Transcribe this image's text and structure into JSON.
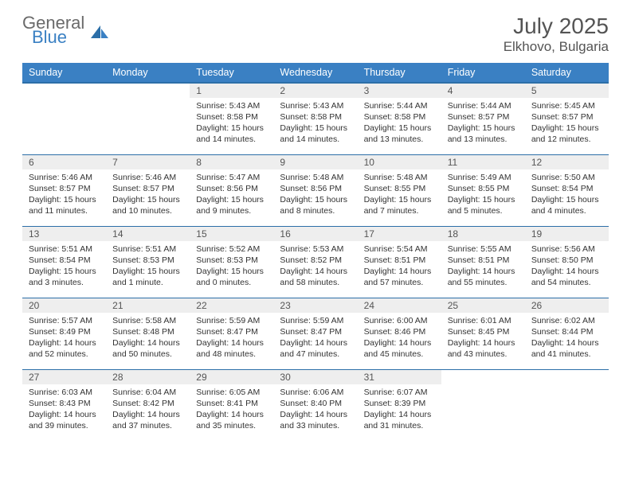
{
  "brand": {
    "part1": "General",
    "part2": "Blue"
  },
  "title": {
    "month": "July 2025",
    "location": "Elkhovo, Bulgaria"
  },
  "colors": {
    "header_bg": "#3a80c3",
    "header_border": "#2c6fa8",
    "daynum_bg": "#eeeeee",
    "text_gray": "#545454"
  },
  "weekdays": [
    "Sunday",
    "Monday",
    "Tuesday",
    "Wednesday",
    "Thursday",
    "Friday",
    "Saturday"
  ],
  "weeks": [
    [
      null,
      null,
      {
        "n": "1",
        "sr": "Sunrise: 5:43 AM",
        "ss": "Sunset: 8:58 PM",
        "dl": "Daylight: 15 hours and 14 minutes."
      },
      {
        "n": "2",
        "sr": "Sunrise: 5:43 AM",
        "ss": "Sunset: 8:58 PM",
        "dl": "Daylight: 15 hours and 14 minutes."
      },
      {
        "n": "3",
        "sr": "Sunrise: 5:44 AM",
        "ss": "Sunset: 8:58 PM",
        "dl": "Daylight: 15 hours and 13 minutes."
      },
      {
        "n": "4",
        "sr": "Sunrise: 5:44 AM",
        "ss": "Sunset: 8:57 PM",
        "dl": "Daylight: 15 hours and 13 minutes."
      },
      {
        "n": "5",
        "sr": "Sunrise: 5:45 AM",
        "ss": "Sunset: 8:57 PM",
        "dl": "Daylight: 15 hours and 12 minutes."
      }
    ],
    [
      {
        "n": "6",
        "sr": "Sunrise: 5:46 AM",
        "ss": "Sunset: 8:57 PM",
        "dl": "Daylight: 15 hours and 11 minutes."
      },
      {
        "n": "7",
        "sr": "Sunrise: 5:46 AM",
        "ss": "Sunset: 8:57 PM",
        "dl": "Daylight: 15 hours and 10 minutes."
      },
      {
        "n": "8",
        "sr": "Sunrise: 5:47 AM",
        "ss": "Sunset: 8:56 PM",
        "dl": "Daylight: 15 hours and 9 minutes."
      },
      {
        "n": "9",
        "sr": "Sunrise: 5:48 AM",
        "ss": "Sunset: 8:56 PM",
        "dl": "Daylight: 15 hours and 8 minutes."
      },
      {
        "n": "10",
        "sr": "Sunrise: 5:48 AM",
        "ss": "Sunset: 8:55 PM",
        "dl": "Daylight: 15 hours and 7 minutes."
      },
      {
        "n": "11",
        "sr": "Sunrise: 5:49 AM",
        "ss": "Sunset: 8:55 PM",
        "dl": "Daylight: 15 hours and 5 minutes."
      },
      {
        "n": "12",
        "sr": "Sunrise: 5:50 AM",
        "ss": "Sunset: 8:54 PM",
        "dl": "Daylight: 15 hours and 4 minutes."
      }
    ],
    [
      {
        "n": "13",
        "sr": "Sunrise: 5:51 AM",
        "ss": "Sunset: 8:54 PM",
        "dl": "Daylight: 15 hours and 3 minutes."
      },
      {
        "n": "14",
        "sr": "Sunrise: 5:51 AM",
        "ss": "Sunset: 8:53 PM",
        "dl": "Daylight: 15 hours and 1 minute."
      },
      {
        "n": "15",
        "sr": "Sunrise: 5:52 AM",
        "ss": "Sunset: 8:53 PM",
        "dl": "Daylight: 15 hours and 0 minutes."
      },
      {
        "n": "16",
        "sr": "Sunrise: 5:53 AM",
        "ss": "Sunset: 8:52 PM",
        "dl": "Daylight: 14 hours and 58 minutes."
      },
      {
        "n": "17",
        "sr": "Sunrise: 5:54 AM",
        "ss": "Sunset: 8:51 PM",
        "dl": "Daylight: 14 hours and 57 minutes."
      },
      {
        "n": "18",
        "sr": "Sunrise: 5:55 AM",
        "ss": "Sunset: 8:51 PM",
        "dl": "Daylight: 14 hours and 55 minutes."
      },
      {
        "n": "19",
        "sr": "Sunrise: 5:56 AM",
        "ss": "Sunset: 8:50 PM",
        "dl": "Daylight: 14 hours and 54 minutes."
      }
    ],
    [
      {
        "n": "20",
        "sr": "Sunrise: 5:57 AM",
        "ss": "Sunset: 8:49 PM",
        "dl": "Daylight: 14 hours and 52 minutes."
      },
      {
        "n": "21",
        "sr": "Sunrise: 5:58 AM",
        "ss": "Sunset: 8:48 PM",
        "dl": "Daylight: 14 hours and 50 minutes."
      },
      {
        "n": "22",
        "sr": "Sunrise: 5:59 AM",
        "ss": "Sunset: 8:47 PM",
        "dl": "Daylight: 14 hours and 48 minutes."
      },
      {
        "n": "23",
        "sr": "Sunrise: 5:59 AM",
        "ss": "Sunset: 8:47 PM",
        "dl": "Daylight: 14 hours and 47 minutes."
      },
      {
        "n": "24",
        "sr": "Sunrise: 6:00 AM",
        "ss": "Sunset: 8:46 PM",
        "dl": "Daylight: 14 hours and 45 minutes."
      },
      {
        "n": "25",
        "sr": "Sunrise: 6:01 AM",
        "ss": "Sunset: 8:45 PM",
        "dl": "Daylight: 14 hours and 43 minutes."
      },
      {
        "n": "26",
        "sr": "Sunrise: 6:02 AM",
        "ss": "Sunset: 8:44 PM",
        "dl": "Daylight: 14 hours and 41 minutes."
      }
    ],
    [
      {
        "n": "27",
        "sr": "Sunrise: 6:03 AM",
        "ss": "Sunset: 8:43 PM",
        "dl": "Daylight: 14 hours and 39 minutes."
      },
      {
        "n": "28",
        "sr": "Sunrise: 6:04 AM",
        "ss": "Sunset: 8:42 PM",
        "dl": "Daylight: 14 hours and 37 minutes."
      },
      {
        "n": "29",
        "sr": "Sunrise: 6:05 AM",
        "ss": "Sunset: 8:41 PM",
        "dl": "Daylight: 14 hours and 35 minutes."
      },
      {
        "n": "30",
        "sr": "Sunrise: 6:06 AM",
        "ss": "Sunset: 8:40 PM",
        "dl": "Daylight: 14 hours and 33 minutes."
      },
      {
        "n": "31",
        "sr": "Sunrise: 6:07 AM",
        "ss": "Sunset: 8:39 PM",
        "dl": "Daylight: 14 hours and 31 minutes."
      },
      null,
      null
    ]
  ]
}
